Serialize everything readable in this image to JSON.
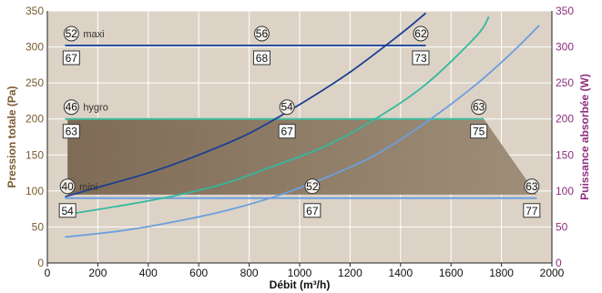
{
  "chart_data": {
    "type": "line",
    "xlabel": "Débit (m³/h)",
    "ylabel_left": "Pression totale (Pa)",
    "ylabel_right": "Puissance absorbée (W)",
    "xlim": [
      0,
      2000
    ],
    "ylim_left": [
      0,
      350
    ],
    "ylim_right": [
      0,
      350
    ],
    "x_ticks": [
      0,
      200,
      400,
      600,
      800,
      1000,
      1200,
      1400,
      1600,
      1800,
      2000
    ],
    "y_ticks": [
      0,
      50,
      100,
      150,
      200,
      250,
      300,
      350
    ],
    "grid": true,
    "operating_zone": {
      "polygon": [
        [
          80,
          200
        ],
        [
          1730,
          200
        ],
        [
          1940,
          95
        ],
        [
          80,
          95
        ]
      ]
    },
    "pressure_curves": [
      {
        "name": "maxi",
        "x": [
          70,
          1500
        ],
        "y": [
          302,
          302
        ],
        "color": "#2a4f9e",
        "markers": [
          {
            "x": 95,
            "kind": "circle",
            "text": "52"
          },
          {
            "x": 95,
            "kind": "square",
            "text": "67"
          },
          {
            "x": 850,
            "kind": "circle",
            "text": "56"
          },
          {
            "x": 850,
            "kind": "square",
            "text": "68"
          },
          {
            "x": 1480,
            "kind": "circle",
            "text": "62"
          },
          {
            "x": 1480,
            "kind": "square",
            "text": "73"
          }
        ]
      },
      {
        "name": "hygro",
        "x": [
          70,
          1730
        ],
        "y": [
          200,
          200
        ],
        "color": "#3fbfa0",
        "markers": [
          {
            "x": 95,
            "kind": "circle",
            "text": "46"
          },
          {
            "x": 95,
            "kind": "square",
            "text": "63"
          },
          {
            "x": 950,
            "kind": "circle",
            "text": "54"
          },
          {
            "x": 950,
            "kind": "square",
            "text": "67"
          },
          {
            "x": 1710,
            "kind": "circle",
            "text": "63"
          },
          {
            "x": 1710,
            "kind": "square",
            "text": "75"
          }
        ]
      },
      {
        "name": "mini",
        "x": [
          70,
          1940
        ],
        "y": [
          90,
          90
        ],
        "color": "#6f9fde",
        "markers": [
          {
            "x": 80,
            "kind": "circle",
            "text": "40"
          },
          {
            "x": 80,
            "kind": "square",
            "text": "54"
          },
          {
            "x": 1050,
            "kind": "circle",
            "text": "52"
          },
          {
            "x": 1050,
            "kind": "square",
            "text": "67"
          },
          {
            "x": 1920,
            "kind": "circle",
            "text": "63"
          },
          {
            "x": 1920,
            "kind": "square",
            "text": "77"
          }
        ]
      }
    ],
    "power_curves": [
      {
        "color": "#1b3f91",
        "x": [
          70,
          200,
          400,
          600,
          800,
          1000,
          1200,
          1400,
          1500
        ],
        "y": [
          92,
          105,
          125,
          150,
          180,
          220,
          265,
          318,
          347
        ]
      },
      {
        "color": "#35b8a0",
        "x": [
          70,
          300,
          500,
          700,
          900,
          1100,
          1300,
          1500,
          1700,
          1750
        ],
        "y": [
          67,
          80,
          93,
          110,
          135,
          162,
          200,
          248,
          315,
          342
        ]
      },
      {
        "color": "#6c9fdc",
        "x": [
          70,
          300,
          500,
          700,
          900,
          1100,
          1300,
          1500,
          1700,
          1850,
          1950
        ],
        "y": [
          36,
          45,
          57,
          72,
          92,
          118,
          150,
          195,
          248,
          295,
          330
        ]
      }
    ]
  }
}
